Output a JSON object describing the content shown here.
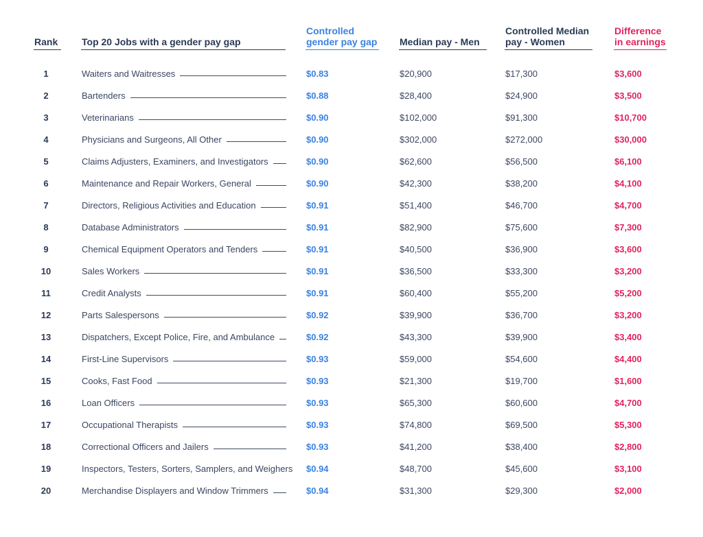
{
  "colors": {
    "gap": "#3b82e0",
    "diff": "#e0245e",
    "text": "#3a4660",
    "header": "#2b3a55"
  },
  "headers": {
    "rank": "Rank",
    "job": "Top 20 Jobs with a gender pay gap",
    "gap_1": "Controlled",
    "gap_2": "gender pay gap",
    "men": "Median pay - Men",
    "women_1": "Controlled Median",
    "women_2": "pay - Women",
    "diff_1": "Difference",
    "diff_2": "in earnings"
  },
  "chart_data": {
    "type": "table",
    "columns": [
      "Rank",
      "Top 20 Jobs with a gender pay gap",
      "Controlled gender pay gap",
      "Median pay - Men",
      "Controlled Median pay - Women",
      "Difference in earnings"
    ],
    "rows": [
      {
        "rank": "1",
        "job": "Waiters and Waitresses",
        "gap": "$0.83",
        "men": "$20,900",
        "women": "$17,300",
        "diff": "$3,600"
      },
      {
        "rank": "2",
        "job": "Bartenders",
        "gap": "$0.88",
        "men": "$28,400",
        "women": "$24,900",
        "diff": "$3,500"
      },
      {
        "rank": "3",
        "job": "Veterinarians",
        "gap": "$0.90",
        "men": "$102,000",
        "women": "$91,300",
        "diff": "$10,700"
      },
      {
        "rank": "4",
        "job": "Physicians and Surgeons, All Other",
        "gap": "$0.90",
        "men": "$302,000",
        "women": "$272,000",
        "diff": "$30,000"
      },
      {
        "rank": "5",
        "job": "Claims Adjusters, Examiners, and Investigators",
        "gap": "$0.90",
        "men": "$62,600",
        "women": "$56,500",
        "diff": "$6,100"
      },
      {
        "rank": "6",
        "job": "Maintenance and Repair Workers, General",
        "gap": "$0.90",
        "men": "$42,300",
        "women": "$38,200",
        "diff": "$4,100"
      },
      {
        "rank": "7",
        "job": "Directors, Religious Activities and Education",
        "gap": "$0.91",
        "men": "$51,400",
        "women": "$46,700",
        "diff": "$4,700"
      },
      {
        "rank": "8",
        "job": "Database Administrators",
        "gap": "$0.91",
        "men": "$82,900",
        "women": "$75,600",
        "diff": "$7,300"
      },
      {
        "rank": "9",
        "job": "Chemical Equipment Operators and Tenders",
        "gap": "$0.91",
        "men": "$40,500",
        "women": "$36,900",
        "diff": "$3,600"
      },
      {
        "rank": "10",
        "job": "Sales Workers",
        "gap": "$0.91",
        "men": "$36,500",
        "women": "$33,300",
        "diff": "$3,200"
      },
      {
        "rank": "11",
        "job": "Credit Analysts",
        "gap": "$0.91",
        "men": "$60,400",
        "women": "$55,200",
        "diff": "$5,200"
      },
      {
        "rank": "12",
        "job": "Parts Salespersons",
        "gap": "$0.92",
        "men": "$39,900",
        "women": "$36,700",
        "diff": "$3,200"
      },
      {
        "rank": "13",
        "job": "Dispatchers, Except Police, Fire, and Ambulance",
        "gap": "$0.92",
        "men": "$43,300",
        "women": "$39,900",
        "diff": "$3,400"
      },
      {
        "rank": "14",
        "job": "First-Line Supervisors",
        "gap": "$0.93",
        "men": "$59,000",
        "women": "$54,600",
        "diff": "$4,400"
      },
      {
        "rank": "15",
        "job": "Cooks, Fast Food",
        "gap": "$0.93",
        "men": "$21,300",
        "women": "$19,700",
        "diff": "$1,600"
      },
      {
        "rank": "16",
        "job": "Loan Officers",
        "gap": "$0.93",
        "men": "$65,300",
        "women": "$60,600",
        "diff": "$4,700"
      },
      {
        "rank": "17",
        "job": "Occupational Therapists",
        "gap": "$0.93",
        "men": "$74,800",
        "women": "$69,500",
        "diff": "$5,300"
      },
      {
        "rank": "18",
        "job": "Correctional Officers and Jailers",
        "gap": "$0.93",
        "men": "$41,200",
        "women": "$38,400",
        "diff": "$2,800"
      },
      {
        "rank": "19",
        "job": "Inspectors, Testers, Sorters, Samplers, and Weighers",
        "gap": "$0.94",
        "men": "$48,700",
        "women": "$45,600",
        "diff": "$3,100"
      },
      {
        "rank": "20",
        "job": "Merchandise Displayers and Window Trimmers",
        "gap": "$0.94",
        "men": "$31,300",
        "women": "$29,300",
        "diff": "$2,000"
      }
    ]
  }
}
